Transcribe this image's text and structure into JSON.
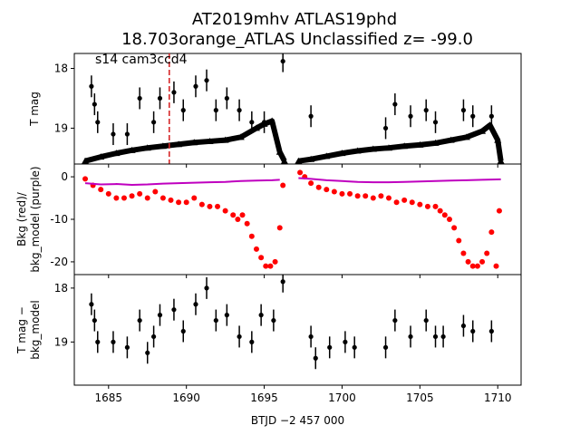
{
  "title_line1": "AT2019mhv  ATLAS19phd",
  "title_line2": "18.703orange_ATLAS Unclassified z= -99.0",
  "annotation": "s14 cam3ccd4",
  "chart_data": [
    {
      "type": "scatter",
      "panel": "top",
      "ylabel": "T mag",
      "y_inverted": true,
      "xlim": [
        1682.8,
        1711.5
      ],
      "ylim": [
        19.6,
        17.75
      ],
      "yticks": [
        18,
        19
      ],
      "marker_line_x": 1688.9,
      "marker_line_color": "#d62728",
      "series": [
        {
          "role": "upper limits (triangles)",
          "color": "#000000",
          "segments": [
            {
              "x": [
                1683.5,
                1684.5,
                1685.5,
                1686.5,
                1687.5,
                1688.5,
                1689.5,
                1690.5,
                1691.5,
                1692.5,
                1693.5,
                1694.5,
                1695.0,
                1695.5,
                1696.0,
                1696.3
              ],
              "y": [
                19.55,
                19.48,
                19.42,
                19.37,
                19.33,
                19.3,
                19.27,
                19.24,
                19.22,
                19.2,
                19.15,
                19.0,
                18.93,
                18.88,
                19.4,
                19.55
              ]
            },
            {
              "x": [
                1697.2,
                1698.0,
                1699.0,
                1700.0,
                1701.0,
                1702.0,
                1703.0,
                1704.0,
                1705.0,
                1706.0,
                1707.0,
                1708.0,
                1709.0,
                1709.5,
                1710.0,
                1710.2
              ],
              "y": [
                19.55,
                19.52,
                19.47,
                19.42,
                19.38,
                19.35,
                19.33,
                19.3,
                19.28,
                19.25,
                19.2,
                19.15,
                19.05,
                18.95,
                19.2,
                19.55
              ]
            }
          ]
        },
        {
          "role": "detections",
          "color": "#000000",
          "x": [
            1683.9,
            1684.1,
            1684.3,
            1685.3,
            1686.2,
            1687.0,
            1687.9,
            1688.3,
            1689.2,
            1689.8,
            1690.6,
            1691.3,
            1691.9,
            1692.6,
            1693.4,
            1694.2,
            1695.0,
            1696.2,
            1698.0,
            1702.8,
            1703.4,
            1704.4,
            1705.4,
            1706.0,
            1707.8,
            1708.4,
            1709.6
          ],
          "y": [
            18.3,
            18.6,
            18.9,
            19.1,
            19.1,
            18.5,
            18.9,
            18.5,
            18.4,
            18.7,
            18.3,
            18.2,
            18.7,
            18.5,
            18.7,
            18.9,
            18.9,
            17.88,
            18.8,
            19.0,
            18.6,
            18.8,
            18.7,
            18.9,
            18.7,
            18.8,
            18.8
          ]
        }
      ]
    },
    {
      "type": "scatter",
      "panel": "middle",
      "ylabel": "Bkg (red)/\nbkg_model (purple)",
      "xlim": [
        1682.8,
        1711.5
      ],
      "ylim": [
        -23,
        3
      ],
      "yticks": [
        0,
        -10,
        -20
      ],
      "series": [
        {
          "role": "bkg",
          "color": "#ff0000",
          "x": [
            1683.5,
            1684.0,
            1684.5,
            1685.0,
            1685.5,
            1686.0,
            1686.5,
            1687.0,
            1687.5,
            1688.0,
            1688.5,
            1689.0,
            1689.5,
            1690.0,
            1690.5,
            1691.0,
            1691.5,
            1692.0,
            1692.5,
            1693.0,
            1693.3,
            1693.6,
            1693.9,
            1694.2,
            1694.5,
            1694.8,
            1695.1,
            1695.4,
            1695.7,
            1696.0,
            1696.2,
            1697.3,
            1697.6,
            1698.0,
            1698.5,
            1699.0,
            1699.5,
            1700.0,
            1700.5,
            1701.0,
            1701.5,
            1702.0,
            1702.5,
            1703.0,
            1703.5,
            1704.0,
            1704.5,
            1705.0,
            1705.5,
            1706.0,
            1706.3,
            1706.6,
            1706.9,
            1707.2,
            1707.5,
            1707.8,
            1708.1,
            1708.4,
            1708.7,
            1709.0,
            1709.3,
            1709.6,
            1709.9,
            1710.1
          ],
          "y": [
            -0.5,
            -2.0,
            -3.0,
            -4.0,
            -5.0,
            -5.0,
            -4.5,
            -4.0,
            -5.0,
            -3.5,
            -5.0,
            -5.5,
            -6.0,
            -6.0,
            -5.0,
            -6.5,
            -7.0,
            -7.0,
            -8.0,
            -9.0,
            -10.0,
            -9.0,
            -11.0,
            -14.0,
            -17.0,
            -19.0,
            -21.0,
            -21.0,
            -20.0,
            -12.0,
            -2.0,
            1.0,
            0.0,
            -1.5,
            -2.5,
            -3.0,
            -3.5,
            -4.0,
            -4.0,
            -4.5,
            -4.5,
            -5.0,
            -4.5,
            -5.0,
            -6.0,
            -5.5,
            -6.0,
            -6.5,
            -7.0,
            -7.0,
            -8.0,
            -9.0,
            -10.0,
            -12.0,
            -15.0,
            -18.0,
            -20.0,
            -21.0,
            -21.0,
            -20.0,
            -18.0,
            -13.0,
            -21.0,
            -8.0
          ]
        },
        {
          "role": "bkg_model",
          "color": "#bf00bf",
          "segments": [
            {
              "x": [
                1683.5,
                1684.5,
                1685.5,
                1686.5,
                1687.5,
                1688.5,
                1689.5,
                1690.5,
                1691.5,
                1692.5,
                1693.5,
                1694.5,
                1695.5,
                1696.0
              ],
              "y": [
                -1.5,
                -1.8,
                -1.7,
                -1.9,
                -1.8,
                -1.6,
                -1.5,
                -1.4,
                -1.3,
                -1.2,
                -1.0,
                -0.9,
                -0.8,
                -0.7
              ]
            },
            {
              "x": [
                1697.2,
                1698.0,
                1699.0,
                1700.0,
                1701.0,
                1702.0,
                1703.0,
                1704.0,
                1705.0,
                1706.0,
                1707.0,
                1708.0,
                1709.0,
                1710.2
              ],
              "y": [
                -0.3,
                -0.5,
                -0.8,
                -1.0,
                -1.2,
                -1.3,
                -1.3,
                -1.2,
                -1.1,
                -1.0,
                -0.9,
                -0.8,
                -0.7,
                -0.6
              ]
            }
          ]
        }
      ]
    },
    {
      "type": "scatter",
      "panel": "bottom",
      "ylabel": "T mag −\nbkg_model",
      "xlabel": "BTJD −2 457 000",
      "y_inverted": true,
      "xlim": [
        1682.8,
        1711.5
      ],
      "ylim": [
        19.8,
        17.75
      ],
      "yticks": [
        18,
        19
      ],
      "xticks": [
        1685,
        1690,
        1695,
        1700,
        1705,
        1710
      ],
      "series": [
        {
          "role": "detections",
          "color": "#000000",
          "x": [
            1683.9,
            1684.1,
            1684.3,
            1685.3,
            1686.2,
            1687.0,
            1687.5,
            1687.9,
            1688.3,
            1689.2,
            1689.8,
            1690.6,
            1691.3,
            1691.9,
            1692.6,
            1693.4,
            1694.2,
            1694.8,
            1695.6,
            1696.2,
            1698.0,
            1698.3,
            1699.2,
            1700.2,
            1700.8,
            1702.8,
            1703.4,
            1704.4,
            1705.4,
            1706.0,
            1706.5,
            1707.8,
            1708.4,
            1709.6
          ],
          "y": [
            18.3,
            18.6,
            19.0,
            19.0,
            19.1,
            18.6,
            19.2,
            18.9,
            18.5,
            18.4,
            18.8,
            18.3,
            18.0,
            18.6,
            18.5,
            18.9,
            19.0,
            18.5,
            18.6,
            17.88,
            18.9,
            19.3,
            19.1,
            19.0,
            19.1,
            19.1,
            18.6,
            18.9,
            18.6,
            18.9,
            18.9,
            18.7,
            18.8,
            18.8
          ]
        }
      ]
    }
  ]
}
